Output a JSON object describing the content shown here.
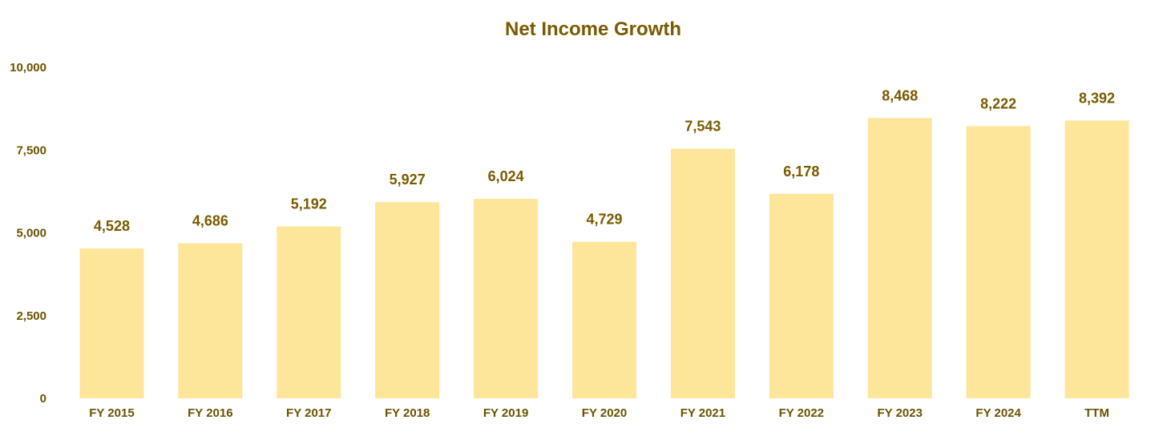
{
  "chart_data": {
    "type": "bar",
    "title": "Net Income Growth",
    "xlabel": "",
    "ylabel": "",
    "categories": [
      "FY 2015",
      "FY 2016",
      "FY 2017",
      "FY 2018",
      "FY 2019",
      "FY 2020",
      "FY 2021",
      "FY 2022",
      "FY 2023",
      "FY 2024",
      "TTM"
    ],
    "values": [
      4528,
      4686,
      5192,
      5927,
      6024,
      4729,
      7543,
      6178,
      8468,
      8222,
      8392
    ],
    "data_labels": [
      "4,528",
      "4,686",
      "5,192",
      "5,927",
      "6,024",
      "4,729",
      "7,543",
      "6,178",
      "8,468",
      "8,222",
      "8,392"
    ],
    "ylim": [
      0,
      10000
    ],
    "yticks": [
      0,
      2500,
      5000,
      7500,
      10000
    ],
    "ytick_labels": [
      "0",
      "2,500",
      "5,000",
      "7,500",
      "10,000"
    ],
    "grid": false,
    "legend": "none",
    "colors": {
      "bar": "#fde59a",
      "text": "#7a5a00"
    }
  }
}
